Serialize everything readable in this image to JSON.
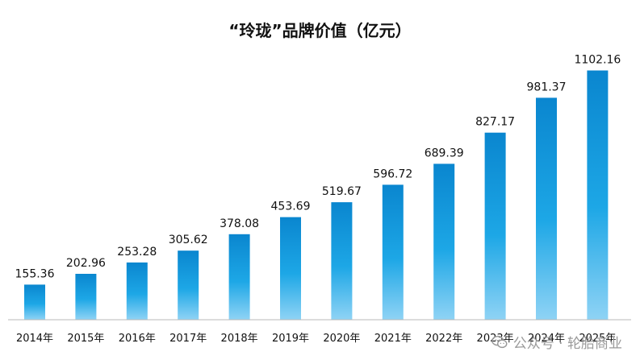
{
  "colors": {
    "bar_top": "#0a86cf",
    "bar_bottom": "#8fd3f5",
    "axis": "#b8b8b8",
    "watermark": "#9a9a9a"
  },
  "chart_data": {
    "type": "bar",
    "title": "“玲珑”品牌价值（亿元）",
    "categories": [
      "2014年",
      "2015年",
      "2016年",
      "2017年",
      "2018年",
      "2019年",
      "2020年",
      "2021年",
      "2022年",
      "2023年",
      "2024年",
      "2025年"
    ],
    "values": [
      155.36,
      202.96,
      253.28,
      305.62,
      378.08,
      453.69,
      519.67,
      596.72,
      689.39,
      827.17,
      981.37,
      1102.16
    ],
    "value_labels": [
      "155.36",
      "202.96",
      "253.28",
      "305.62",
      "378.08",
      "453.69",
      "519.67",
      "596.72",
      "689.39",
      "827.17",
      "981.37",
      "1102.16"
    ],
    "xlabel": "",
    "ylabel": "",
    "ylim": [
      0,
      1200
    ],
    "grid": false,
    "legend": "none"
  },
  "watermark": {
    "text": "公众号 · 轮胎商业",
    "icon": "wechat-icon"
  }
}
